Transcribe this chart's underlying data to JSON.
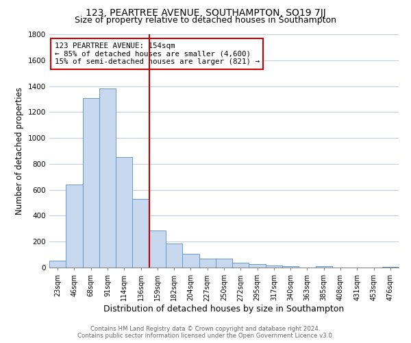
{
  "title": "123, PEARTREE AVENUE, SOUTHAMPTON, SO19 7JJ",
  "subtitle": "Size of property relative to detached houses in Southampton",
  "xlabel": "Distribution of detached houses by size in Southampton",
  "ylabel": "Number of detached properties",
  "bar_labels": [
    "23sqm",
    "46sqm",
    "68sqm",
    "91sqm",
    "114sqm",
    "136sqm",
    "159sqm",
    "182sqm",
    "204sqm",
    "227sqm",
    "250sqm",
    "272sqm",
    "295sqm",
    "317sqm",
    "340sqm",
    "363sqm",
    "385sqm",
    "408sqm",
    "431sqm",
    "453sqm",
    "476sqm"
  ],
  "bar_values": [
    55,
    640,
    1310,
    1380,
    850,
    530,
    285,
    185,
    108,
    68,
    68,
    35,
    25,
    18,
    10,
    0,
    8,
    0,
    0,
    0,
    5
  ],
  "bar_color": "#c8d8ee",
  "bar_edge_color": "#6699cc",
  "vline_x_idx": 6,
  "vline_color": "#bb0000",
  "ylim": [
    0,
    1800
  ],
  "yticks": [
    0,
    200,
    400,
    600,
    800,
    1000,
    1200,
    1400,
    1600,
    1800
  ],
  "annotation_title": "123 PEARTREE AVENUE: 154sqm",
  "annotation_line1": "← 85% of detached houses are smaller (4,600)",
  "annotation_line2": "15% of semi-detached houses are larger (821) →",
  "annotation_box_color": "#cc0000",
  "footer_line1": "Contains HM Land Registry data © Crown copyright and database right 2024.",
  "footer_line2": "Contains public sector information licensed under the Open Government Licence v3.0.",
  "background_color": "#ffffff",
  "grid_color": "#c0cfe0",
  "title_fontsize": 10,
  "subtitle_fontsize": 9,
  "ylabel_fontsize": 8.5,
  "xlabel_fontsize": 9,
  "tick_fontsize": 7
}
